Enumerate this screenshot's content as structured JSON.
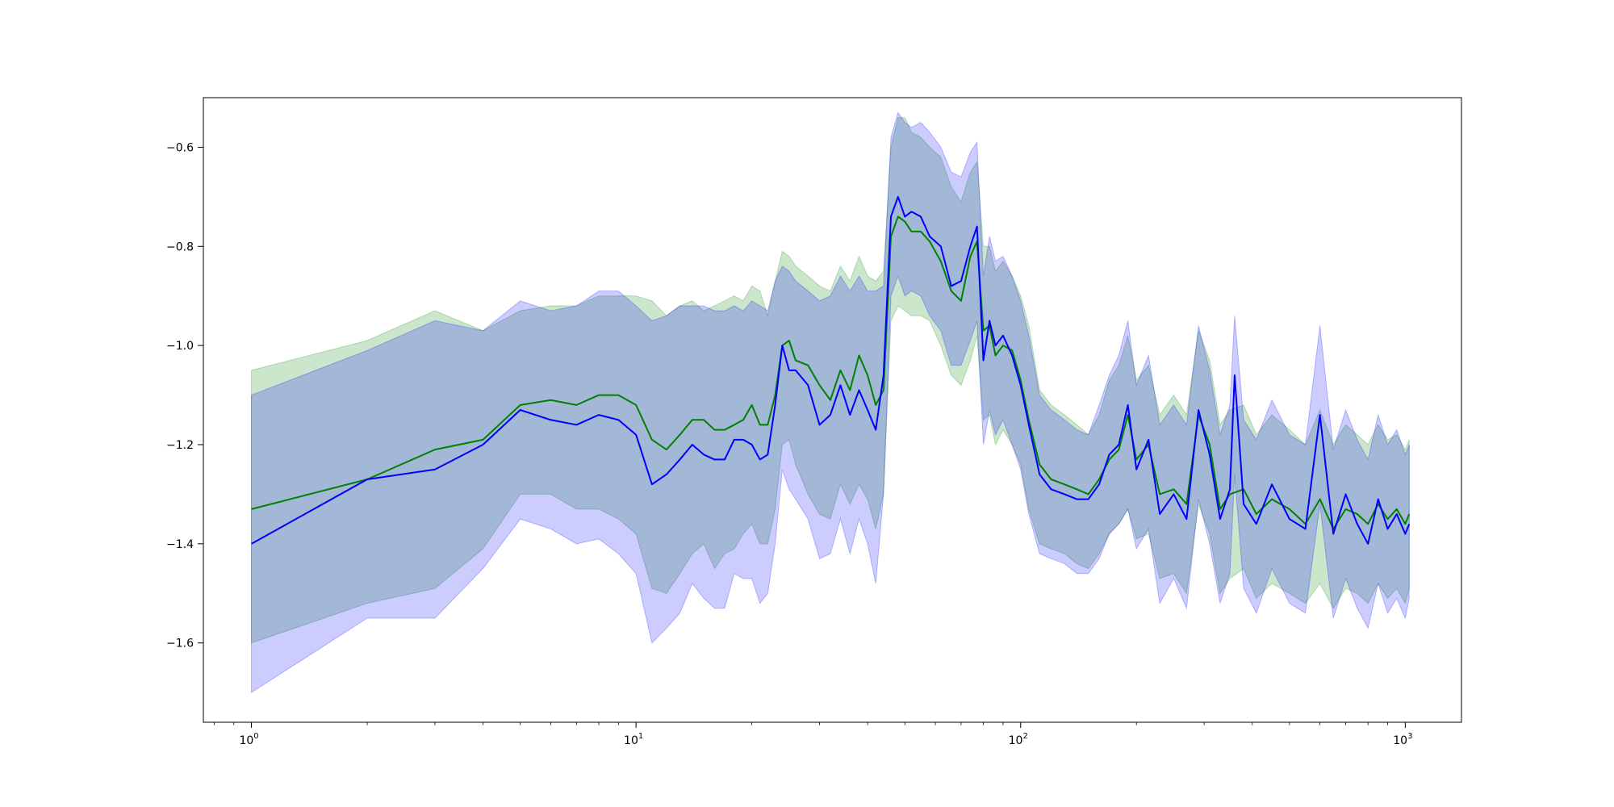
{
  "chart_data": {
    "type": "line",
    "title": "",
    "xlabel": "",
    "ylabel": "",
    "x_scale": "log",
    "xlim": [
      0.75,
      1400
    ],
    "ylim": [
      -1.76,
      -0.5
    ],
    "grid": false,
    "legend": "none",
    "x_ticks": [
      {
        "value": 1,
        "base": "10",
        "exp": "0"
      },
      {
        "value": 10,
        "base": "10",
        "exp": "1"
      },
      {
        "value": 100,
        "base": "10",
        "exp": "2"
      },
      {
        "value": 1000,
        "base": "10",
        "exp": "3"
      }
    ],
    "y_ticks": [
      {
        "value": -0.6,
        "label": "−0.6"
      },
      {
        "value": -0.8,
        "label": "−0.8"
      },
      {
        "value": -1.0,
        "label": "−1.0"
      },
      {
        "value": -1.2,
        "label": "−1.2"
      },
      {
        "value": -1.4,
        "label": "−1.4"
      },
      {
        "value": -1.6,
        "label": "−1.6"
      }
    ],
    "series": [
      {
        "color": "#008000",
        "band_color": "#008000",
        "band_opacity": 0.2,
        "points": [
          [
            1,
            -1.33,
            -1.6,
            -1.05
          ],
          [
            2,
            -1.27,
            -1.52,
            -0.99
          ],
          [
            3,
            -1.21,
            -1.49,
            -0.93
          ],
          [
            4,
            -1.19,
            -1.41,
            -0.97
          ],
          [
            5,
            -1.12,
            -1.3,
            -0.93
          ],
          [
            6,
            -1.11,
            -1.3,
            -0.92
          ],
          [
            7,
            -1.12,
            -1.33,
            -0.92
          ],
          [
            8,
            -1.1,
            -1.33,
            -0.9
          ],
          [
            9,
            -1.1,
            -1.35,
            -0.9
          ],
          [
            10,
            -1.12,
            -1.38,
            -0.9
          ],
          [
            11,
            -1.19,
            -1.49,
            -0.91
          ],
          [
            12,
            -1.21,
            -1.5,
            -0.94
          ],
          [
            13,
            -1.18,
            -1.46,
            -0.92
          ],
          [
            14,
            -1.15,
            -1.42,
            -0.91
          ],
          [
            15,
            -1.15,
            -1.4,
            -0.93
          ],
          [
            16,
            -1.17,
            -1.45,
            -0.92
          ],
          [
            17,
            -1.17,
            -1.42,
            -0.91
          ],
          [
            18,
            -1.16,
            -1.41,
            -0.9
          ],
          [
            19,
            -1.15,
            -1.38,
            -0.91
          ],
          [
            20,
            -1.12,
            -1.36,
            -0.88
          ],
          [
            21,
            -1.16,
            -1.4,
            -0.89
          ],
          [
            22,
            -1.16,
            -1.4,
            -0.94
          ],
          [
            23,
            -1.1,
            -1.33,
            -0.87
          ],
          [
            24,
            -1.0,
            -1.2,
            -0.81
          ],
          [
            25,
            -0.99,
            -1.19,
            -0.82
          ],
          [
            26,
            -1.03,
            -1.24,
            -0.84
          ],
          [
            28,
            -1.04,
            -1.3,
            -0.86
          ],
          [
            30,
            -1.08,
            -1.34,
            -0.88
          ],
          [
            32,
            -1.11,
            -1.35,
            -0.89
          ],
          [
            34,
            -1.05,
            -1.28,
            -0.84
          ],
          [
            36,
            -1.09,
            -1.32,
            -0.87
          ],
          [
            38,
            -1.02,
            -1.28,
            -0.82
          ],
          [
            40,
            -1.06,
            -1.31,
            -0.86
          ],
          [
            42,
            -1.12,
            -1.37,
            -0.87
          ],
          [
            44,
            -1.09,
            -1.3,
            -0.85
          ],
          [
            46,
            -0.78,
            -0.95,
            -0.6
          ],
          [
            48,
            -0.74,
            -0.92,
            -0.54
          ],
          [
            50,
            -0.75,
            -0.93,
            -0.54
          ],
          [
            52,
            -0.77,
            -0.94,
            -0.57
          ],
          [
            55,
            -0.77,
            -0.94,
            -0.58
          ],
          [
            58,
            -0.79,
            -0.95,
            -0.6
          ],
          [
            62,
            -0.83,
            -1.0,
            -0.62
          ],
          [
            66,
            -0.89,
            -1.06,
            -0.68
          ],
          [
            70,
            -0.91,
            -1.08,
            -0.71
          ],
          [
            74,
            -0.82,
            -1.03,
            -0.65
          ],
          [
            77,
            -0.79,
            -0.98,
            -0.63
          ],
          [
            80,
            -0.97,
            -1.15,
            -0.8
          ],
          [
            83,
            -0.96,
            -1.14,
            -0.8
          ],
          [
            86,
            -1.02,
            -1.2,
            -0.85
          ],
          [
            90,
            -1.0,
            -1.17,
            -0.83
          ],
          [
            95,
            -1.01,
            -1.2,
            -0.86
          ],
          [
            100,
            -1.07,
            -1.24,
            -0.9
          ],
          [
            105,
            -1.15,
            -1.33,
            -0.96
          ],
          [
            112,
            -1.24,
            -1.4,
            -1.09
          ],
          [
            120,
            -1.27,
            -1.41,
            -1.12
          ],
          [
            130,
            -1.28,
            -1.42,
            -1.14
          ],
          [
            140,
            -1.29,
            -1.44,
            -1.16
          ],
          [
            150,
            -1.3,
            -1.45,
            -1.18
          ],
          [
            160,
            -1.27,
            -1.42,
            -1.14
          ],
          [
            170,
            -1.23,
            -1.38,
            -1.07
          ],
          [
            180,
            -1.21,
            -1.36,
            -1.04
          ],
          [
            190,
            -1.14,
            -1.33,
            -0.98
          ],
          [
            200,
            -1.23,
            -1.39,
            -1.07
          ],
          [
            215,
            -1.2,
            -1.38,
            -1.04
          ],
          [
            230,
            -1.3,
            -1.47,
            -1.14
          ],
          [
            250,
            -1.29,
            -1.46,
            -1.1
          ],
          [
            270,
            -1.32,
            -1.5,
            -1.14
          ],
          [
            290,
            -1.14,
            -1.32,
            -0.97
          ],
          [
            310,
            -1.2,
            -1.38,
            -1.03
          ],
          [
            330,
            -1.33,
            -1.5,
            -1.16
          ],
          [
            350,
            -1.3,
            -1.47,
            -1.13
          ],
          [
            380,
            -1.29,
            -1.45,
            -1.12
          ],
          [
            410,
            -1.34,
            -1.51,
            -1.18
          ],
          [
            450,
            -1.31,
            -1.48,
            -1.14
          ],
          [
            500,
            -1.33,
            -1.5,
            -1.17
          ],
          [
            550,
            -1.36,
            -1.52,
            -1.2
          ],
          [
            600,
            -1.31,
            -1.48,
            -1.13
          ],
          [
            650,
            -1.37,
            -1.53,
            -1.2
          ],
          [
            700,
            -1.33,
            -1.49,
            -1.16
          ],
          [
            750,
            -1.34,
            -1.5,
            -1.18
          ],
          [
            800,
            -1.36,
            -1.52,
            -1.2
          ],
          [
            850,
            -1.32,
            -1.48,
            -1.16
          ],
          [
            900,
            -1.35,
            -1.51,
            -1.19
          ],
          [
            950,
            -1.33,
            -1.49,
            -1.18
          ],
          [
            1000,
            -1.36,
            -1.52,
            -1.21
          ],
          [
            1024,
            -1.34,
            -1.49,
            -1.19
          ]
        ]
      },
      {
        "color": "#0000ff",
        "band_color": "#0000ff",
        "band_opacity": 0.2,
        "points": [
          [
            1,
            -1.4,
            -1.7,
            -1.1
          ],
          [
            2,
            -1.27,
            -1.55,
            -1.01
          ],
          [
            3,
            -1.25,
            -1.55,
            -0.95
          ],
          [
            4,
            -1.2,
            -1.45,
            -0.97
          ],
          [
            5,
            -1.13,
            -1.35,
            -0.91
          ],
          [
            6,
            -1.15,
            -1.37,
            -0.93
          ],
          [
            7,
            -1.16,
            -1.4,
            -0.92
          ],
          [
            8,
            -1.14,
            -1.39,
            -0.89
          ],
          [
            9,
            -1.15,
            -1.42,
            -0.89
          ],
          [
            10,
            -1.18,
            -1.46,
            -0.92
          ],
          [
            11,
            -1.28,
            -1.6,
            -0.95
          ],
          [
            12,
            -1.26,
            -1.57,
            -0.94
          ],
          [
            13,
            -1.23,
            -1.54,
            -0.92
          ],
          [
            14,
            -1.2,
            -1.48,
            -0.92
          ],
          [
            15,
            -1.22,
            -1.51,
            -0.92
          ],
          [
            16,
            -1.23,
            -1.53,
            -0.93
          ],
          [
            17,
            -1.23,
            -1.53,
            -0.93
          ],
          [
            18,
            -1.19,
            -1.46,
            -0.92
          ],
          [
            19,
            -1.19,
            -1.47,
            -0.93
          ],
          [
            20,
            -1.2,
            -1.47,
            -0.91
          ],
          [
            21,
            -1.23,
            -1.52,
            -0.92
          ],
          [
            22,
            -1.22,
            -1.5,
            -0.93
          ],
          [
            23,
            -1.12,
            -1.4,
            -0.87
          ],
          [
            24,
            -1.0,
            -1.25,
            -0.84
          ],
          [
            25,
            -1.05,
            -1.29,
            -0.85
          ],
          [
            26,
            -1.05,
            -1.31,
            -0.87
          ],
          [
            28,
            -1.08,
            -1.35,
            -0.89
          ],
          [
            30,
            -1.16,
            -1.43,
            -0.91
          ],
          [
            32,
            -1.14,
            -1.42,
            -0.9
          ],
          [
            34,
            -1.08,
            -1.35,
            -0.86
          ],
          [
            36,
            -1.14,
            -1.42,
            -0.89
          ],
          [
            38,
            -1.09,
            -1.35,
            -0.86
          ],
          [
            40,
            -1.13,
            -1.4,
            -0.89
          ],
          [
            42,
            -1.17,
            -1.48,
            -0.89
          ],
          [
            44,
            -1.06,
            -1.3,
            -0.88
          ],
          [
            46,
            -0.74,
            -0.9,
            -0.58
          ],
          [
            48,
            -0.7,
            -0.86,
            -0.53
          ],
          [
            50,
            -0.74,
            -0.9,
            -0.55
          ],
          [
            52,
            -0.73,
            -0.89,
            -0.56
          ],
          [
            55,
            -0.74,
            -0.9,
            -0.55
          ],
          [
            58,
            -0.78,
            -0.94,
            -0.57
          ],
          [
            62,
            -0.8,
            -0.97,
            -0.6
          ],
          [
            66,
            -0.88,
            -1.04,
            -0.65
          ],
          [
            70,
            -0.87,
            -1.04,
            -0.66
          ],
          [
            74,
            -0.8,
            -0.99,
            -0.61
          ],
          [
            77,
            -0.76,
            -0.95,
            -0.59
          ],
          [
            80,
            -1.03,
            -1.2,
            -0.86
          ],
          [
            83,
            -0.95,
            -1.13,
            -0.78
          ],
          [
            86,
            -1.0,
            -1.18,
            -0.83
          ],
          [
            90,
            -0.98,
            -1.15,
            -0.82
          ],
          [
            95,
            -1.02,
            -1.2,
            -0.86
          ],
          [
            100,
            -1.08,
            -1.25,
            -0.91
          ],
          [
            105,
            -1.16,
            -1.34,
            -0.98
          ],
          [
            112,
            -1.26,
            -1.42,
            -1.1
          ],
          [
            120,
            -1.29,
            -1.43,
            -1.13
          ],
          [
            130,
            -1.3,
            -1.44,
            -1.15
          ],
          [
            140,
            -1.31,
            -1.46,
            -1.17
          ],
          [
            150,
            -1.31,
            -1.46,
            -1.18
          ],
          [
            160,
            -1.28,
            -1.43,
            -1.12
          ],
          [
            170,
            -1.22,
            -1.38,
            -1.06
          ],
          [
            180,
            -1.2,
            -1.36,
            -1.02
          ],
          [
            190,
            -1.12,
            -1.33,
            -0.95
          ],
          [
            200,
            -1.25,
            -1.41,
            -1.08
          ],
          [
            215,
            -1.19,
            -1.37,
            -1.02
          ],
          [
            230,
            -1.34,
            -1.52,
            -1.16
          ],
          [
            250,
            -1.3,
            -1.47,
            -1.12
          ],
          [
            270,
            -1.35,
            -1.53,
            -1.16
          ],
          [
            290,
            -1.13,
            -1.31,
            -0.96
          ],
          [
            310,
            -1.22,
            -1.4,
            -1.05
          ],
          [
            330,
            -1.35,
            -1.52,
            -1.18
          ],
          [
            350,
            -1.29,
            -1.46,
            -1.12
          ],
          [
            360,
            -1.06,
            -1.26,
            -0.94
          ],
          [
            380,
            -1.32,
            -1.49,
            -1.15
          ],
          [
            410,
            -1.36,
            -1.54,
            -1.19
          ],
          [
            450,
            -1.28,
            -1.45,
            -1.11
          ],
          [
            500,
            -1.35,
            -1.52,
            -1.18
          ],
          [
            550,
            -1.37,
            -1.54,
            -1.2
          ],
          [
            600,
            -1.14,
            -1.32,
            -0.96
          ],
          [
            650,
            -1.38,
            -1.55,
            -1.21
          ],
          [
            700,
            -1.3,
            -1.47,
            -1.13
          ],
          [
            750,
            -1.36,
            -1.53,
            -1.19
          ],
          [
            800,
            -1.4,
            -1.57,
            -1.23
          ],
          [
            850,
            -1.31,
            -1.48,
            -1.14
          ],
          [
            900,
            -1.37,
            -1.54,
            -1.2
          ],
          [
            950,
            -1.34,
            -1.51,
            -1.17
          ],
          [
            1000,
            -1.38,
            -1.55,
            -1.22
          ],
          [
            1024,
            -1.36,
            -1.51,
            -1.2
          ]
        ]
      }
    ]
  }
}
